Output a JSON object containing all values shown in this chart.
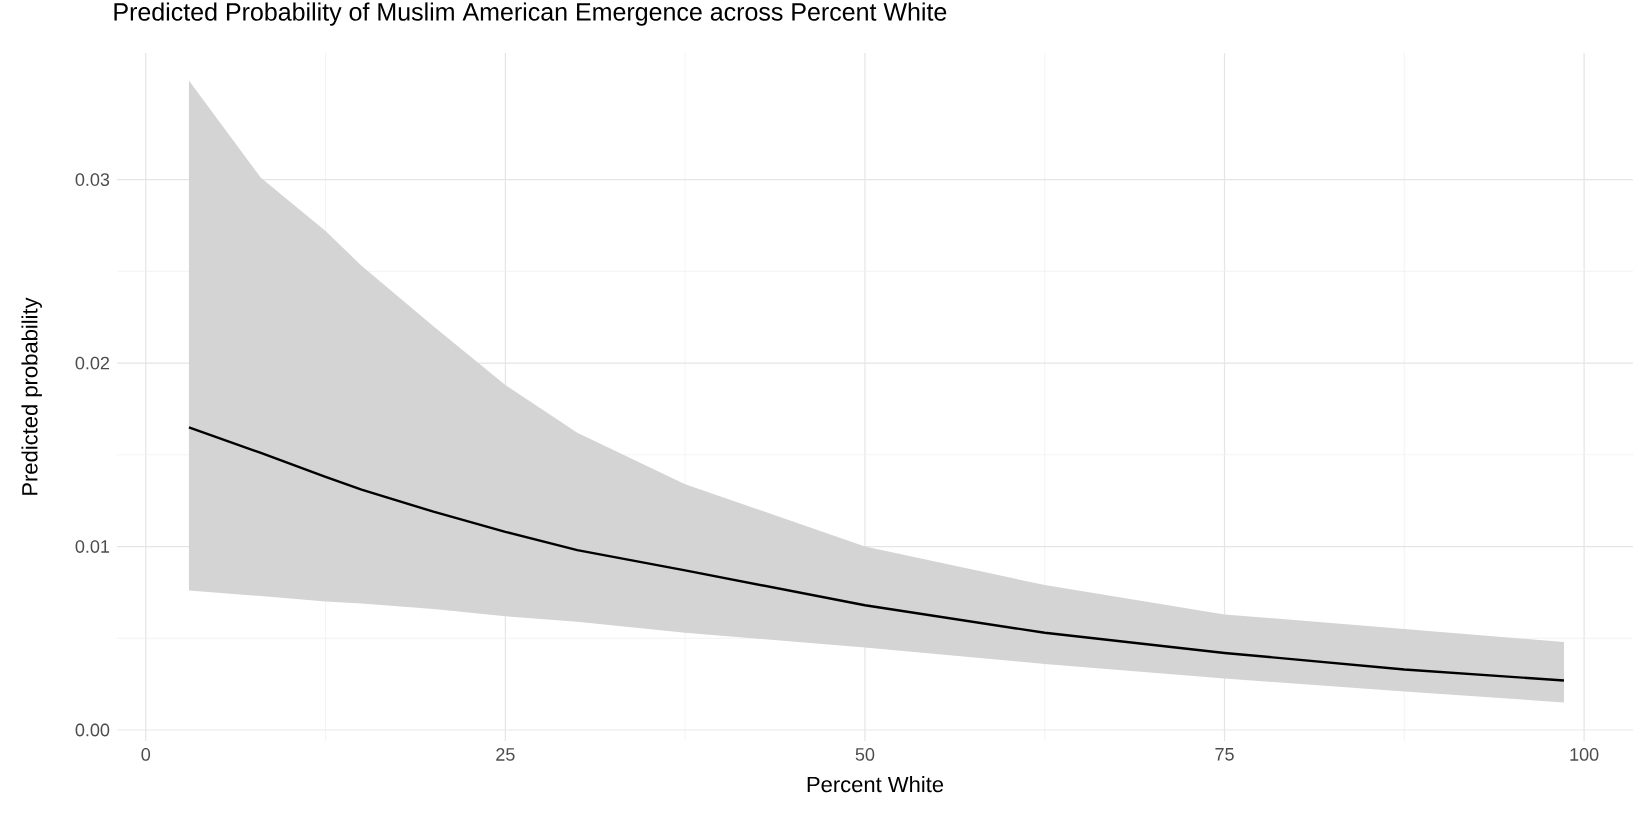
{
  "chart_data": {
    "type": "line",
    "title": "Predicted Probability of Muslim American Emergence across Percent White",
    "xlabel": "Percent White",
    "ylabel": "Predicted probability",
    "series": [
      {
        "color": "#000000",
        "x": [
          3,
          8,
          12.5,
          15,
          20,
          25,
          30,
          37.5,
          50,
          62.5,
          75,
          87.5,
          98.6
        ],
        "values": [
          0.0165,
          0.0151,
          0.0138,
          0.0131,
          0.0119,
          0.0108,
          0.0098,
          0.0087,
          0.0068,
          0.0053,
          0.0042,
          0.0033,
          0.0027
        ],
        "lower": [
          0.0076,
          0.0073,
          0.007,
          0.0069,
          0.0066,
          0.0062,
          0.0059,
          0.0053,
          0.0045,
          0.0036,
          0.0028,
          0.0021,
          0.0015
        ],
        "upper": [
          0.0354,
          0.0301,
          0.0272,
          0.0253,
          0.022,
          0.0188,
          0.0162,
          0.0134,
          0.01,
          0.0079,
          0.0063,
          0.0055,
          0.0048
        ]
      }
    ],
    "xlim": [
      -2,
      103.4
    ],
    "ylim": [
      -0.0006,
      0.0369
    ],
    "xticks": [
      0,
      25,
      50,
      75,
      100
    ],
    "yticks": [
      {
        "value": 0,
        "label": "0.00"
      },
      {
        "value": 0.01,
        "label": "0.01"
      },
      {
        "value": 0.02,
        "label": "0.02"
      },
      {
        "value": 0.03,
        "label": "0.03"
      }
    ],
    "grid": true
  }
}
